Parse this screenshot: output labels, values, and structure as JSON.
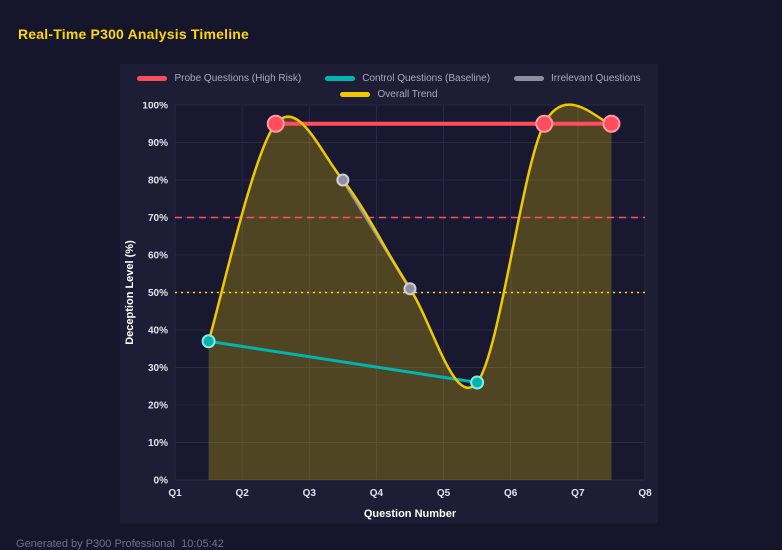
{
  "page": {
    "title": "Real-Time P300 Analysis Timeline",
    "footer": "Generated by P300 Professional  10:05:42"
  },
  "colors": {
    "background": "#15152b",
    "panel": "#1d1d36",
    "plot_bg": "#181830",
    "grid": "#29294a",
    "tick_text": "#e2e2ec",
    "axis_title": "#ffffff",
    "legend_text": "#a9a9bd",
    "title": "#ffd700"
  },
  "chart_data": {
    "type": "line",
    "title": "Real-Time P300 Analysis Timeline",
    "xlabel": "Question Number",
    "ylabel": "Deception Level (%)",
    "x_tick_labels": [
      "Q1",
      "Q2",
      "Q3",
      "Q4",
      "Q5",
      "Q6",
      "Q7",
      "Q8"
    ],
    "x_range": [
      1,
      8
    ],
    "ylim": [
      0,
      100
    ],
    "y_tick_labels": [
      "0%",
      "10%",
      "20%",
      "30%",
      "40%",
      "50%",
      "60%",
      "70%",
      "80%",
      "90%",
      "100%"
    ],
    "legend_position": "top",
    "grid": true,
    "legend": [
      {
        "label": "Probe Questions (High Risk)",
        "color": "#ff4d5e"
      },
      {
        "label": "Control Questions (Baseline)",
        "color": "#00b5ad"
      },
      {
        "label": "Irrelevant Questions",
        "color": "#8e8e9e"
      },
      {
        "label": "Overall Trend",
        "color": "#eec900"
      }
    ],
    "series": [
      {
        "name": "Probe Questions (High Risk)",
        "color": "#ff4d5e",
        "marker_stroke": "#ff9aa2",
        "marker_radius": 8,
        "line_width": 4,
        "smooth": false,
        "points": [
          [
            2.5,
            95
          ],
          [
            6.5,
            95
          ],
          [
            7.5,
            95
          ]
        ]
      },
      {
        "name": "Control Questions (Baseline)",
        "color": "#00b5ad",
        "marker_stroke": "#8ae8e2",
        "marker_radius": 6,
        "line_width": 3,
        "smooth": false,
        "points": [
          [
            1.5,
            37
          ],
          [
            5.5,
            26
          ]
        ]
      },
      {
        "name": "Irrelevant Questions",
        "color": "#8e8e9e",
        "marker_stroke": "#cfcfdb",
        "marker_radius": 5.5,
        "line_width": 3,
        "smooth": false,
        "points": [
          [
            3.5,
            80
          ],
          [
            4.5,
            51
          ]
        ]
      },
      {
        "name": "Overall Trend",
        "color": "#eec900",
        "marker_stroke": "#eec900",
        "marker_radius": 0,
        "line_width": 2.5,
        "smooth": true,
        "fill": "rgba(238,201,0,0.26)",
        "points": [
          [
            1.5,
            37
          ],
          [
            2.5,
            95
          ],
          [
            3.5,
            80
          ],
          [
            4.5,
            51
          ],
          [
            5.5,
            26
          ],
          [
            6.5,
            95
          ],
          [
            7.5,
            95
          ]
        ]
      }
    ],
    "thresholds": [
      {
        "value": 70,
        "color": "#ff4d6a",
        "dash": "7 5"
      },
      {
        "value": 50,
        "color": "#ffd700",
        "dash": "2 4"
      }
    ]
  }
}
